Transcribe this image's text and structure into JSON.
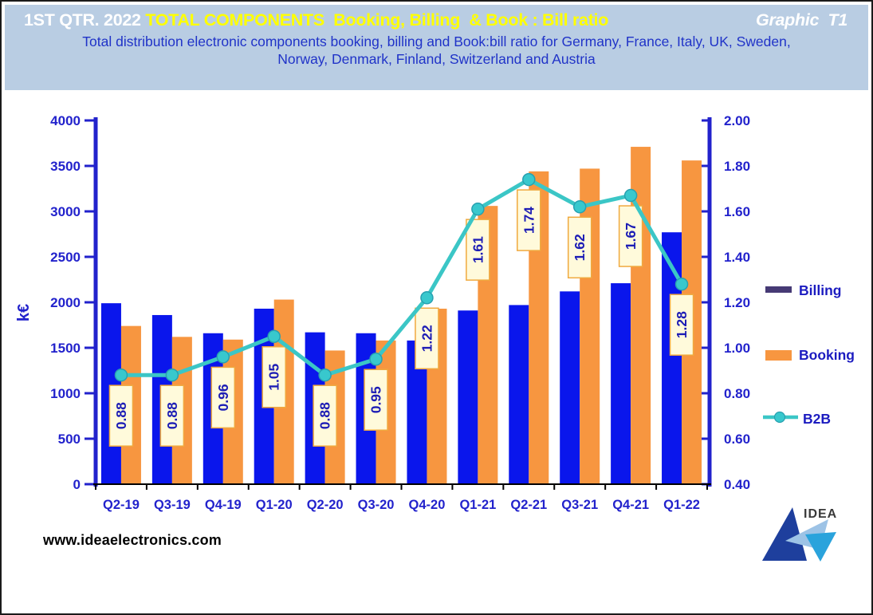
{
  "header": {
    "title_left": "1ST QTR. 2022 ",
    "title_main": "TOTAL COMPONENTS  Booking, Billing  & Book : Bill ratio",
    "title_right": "Graphic  T1",
    "subtitle": "Total distribution electronic components booking, billing and Book:bill ratio for Germany, France, Italy, UK, Sweden, Norway, Denmark, Finland, Switzerland and Austria"
  },
  "footer": {
    "website": "www.ideaelectronics.com",
    "logo_text": "IDEA"
  },
  "colors": {
    "header_band": "#b9cde3",
    "title_text": "#ffffff",
    "title_highlight": "#ffff00",
    "subtitle_text": "#2033c8",
    "axis": "#2222cc",
    "billing_bar": "#0a16ec",
    "billing_legend": "#463a75",
    "booking": "#f79640",
    "b2b_line": "#3bc6c6",
    "b2b_marker": "#38c8cd",
    "b2b_marker_edge": "#28a0b0",
    "label_box_bg": "#fffadb",
    "label_box_border": "#f0a93f",
    "label_text": "#1d1db5",
    "legend_text": "#1c1cc0",
    "category_axis": "#000000",
    "footer_text": "#000000",
    "logo_navy": "#1e3f9d",
    "logo_light": "#9dc3e6",
    "logo_cyan": "#2aa3dc",
    "logo_text": "#3a3a3a"
  },
  "chart_data": {
    "type": "bar+line",
    "categories": [
      "Q2-19",
      "Q3-19",
      "Q4-19",
      "Q1-20",
      "Q2-20",
      "Q3-20",
      "Q4-20",
      "Q1-21",
      "Q2-21",
      "Q3-21",
      "Q4-21",
      "Q1-22"
    ],
    "series": [
      {
        "name": "Billing",
        "render": "bar",
        "axis": "left",
        "values": [
          1990,
          1860,
          1660,
          1930,
          1670,
          1660,
          1580,
          1910,
          1970,
          2120,
          2210,
          2770
        ]
      },
      {
        "name": "Booking",
        "render": "bar",
        "axis": "left",
        "values": [
          1740,
          1620,
          1590,
          2030,
          1470,
          1580,
          1930,
          3060,
          3440,
          3470,
          3710,
          3560
        ]
      },
      {
        "name": "B2B",
        "render": "line",
        "axis": "right",
        "data_labels": true,
        "values": [
          0.88,
          0.88,
          0.96,
          1.05,
          0.88,
          0.95,
          1.22,
          1.61,
          1.74,
          1.62,
          1.67,
          1.28
        ]
      }
    ],
    "left_axis": {
      "title": "k€",
      "min": 0,
      "max": 4000,
      "step": 500,
      "decimals": 0
    },
    "right_axis": {
      "min": 0.4,
      "max": 2.0,
      "step": 0.2,
      "decimals": 2
    },
    "grid": false,
    "legend_position": "right"
  }
}
